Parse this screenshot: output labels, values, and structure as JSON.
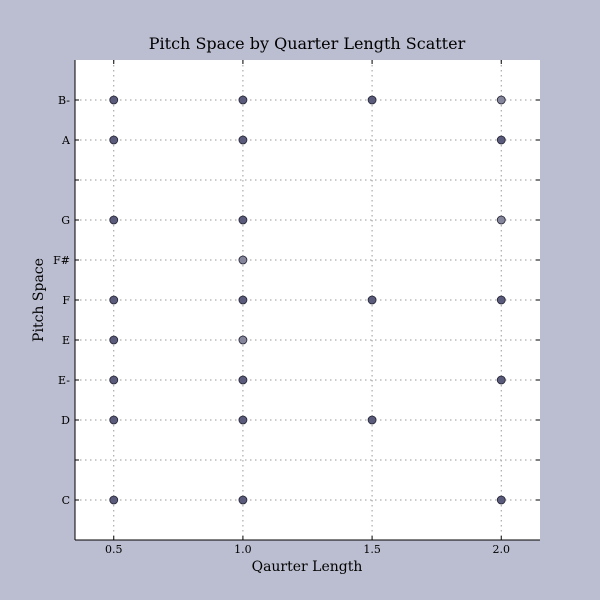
{
  "chart_data": {
    "type": "scatter",
    "title": "Pitch Space by Quarter Length Scatter",
    "xlabel": "Qaurter Length",
    "ylabel": "Pitch Space",
    "xlim": [
      0.35,
      2.15
    ],
    "ylim": [
      -1,
      11
    ],
    "xticks": [
      {
        "value": 0.5,
        "label": "0.5"
      },
      {
        "value": 1.0,
        "label": "1.0"
      },
      {
        "value": 1.5,
        "label": "1.5"
      },
      {
        "value": 2.0,
        "label": "2.0"
      }
    ],
    "yticks": [
      {
        "value": 0,
        "label": "C"
      },
      {
        "value": 1,
        "label": ""
      },
      {
        "value": 2,
        "label": "D"
      },
      {
        "value": 3,
        "label": "E-"
      },
      {
        "value": 4,
        "label": "E"
      },
      {
        "value": 5,
        "label": "F"
      },
      {
        "value": 6,
        "label": "F#"
      },
      {
        "value": 7,
        "label": "G"
      },
      {
        "value": 8,
        "label": ""
      },
      {
        "value": 9,
        "label": "A"
      },
      {
        "value": 10,
        "label": "B-"
      }
    ],
    "grid": true,
    "colors": {
      "dense": "#5a5a7a",
      "sparse": "#85859c",
      "edge": "#222233"
    },
    "points": [
      {
        "x": 0.5,
        "y": 10,
        "density": "dense"
      },
      {
        "x": 1.0,
        "y": 10,
        "density": "dense"
      },
      {
        "x": 1.5,
        "y": 10,
        "density": "dense"
      },
      {
        "x": 2.0,
        "y": 10,
        "density": "sparse"
      },
      {
        "x": 0.5,
        "y": 9,
        "density": "dense"
      },
      {
        "x": 1.0,
        "y": 9,
        "density": "dense"
      },
      {
        "x": 2.0,
        "y": 9,
        "density": "dense"
      },
      {
        "x": 0.5,
        "y": 7,
        "density": "dense"
      },
      {
        "x": 1.0,
        "y": 7,
        "density": "dense"
      },
      {
        "x": 2.0,
        "y": 7,
        "density": "sparse"
      },
      {
        "x": 1.0,
        "y": 6,
        "density": "sparse"
      },
      {
        "x": 0.5,
        "y": 5,
        "density": "dense"
      },
      {
        "x": 1.0,
        "y": 5,
        "density": "dense"
      },
      {
        "x": 1.5,
        "y": 5,
        "density": "dense"
      },
      {
        "x": 2.0,
        "y": 5,
        "density": "dense"
      },
      {
        "x": 0.5,
        "y": 4,
        "density": "dense"
      },
      {
        "x": 1.0,
        "y": 4,
        "density": "sparse"
      },
      {
        "x": 0.5,
        "y": 3,
        "density": "dense"
      },
      {
        "x": 1.0,
        "y": 3,
        "density": "dense"
      },
      {
        "x": 2.0,
        "y": 3,
        "density": "dense"
      },
      {
        "x": 0.5,
        "y": 2,
        "density": "dense"
      },
      {
        "x": 1.0,
        "y": 2,
        "density": "dense"
      },
      {
        "x": 1.5,
        "y": 2,
        "density": "dense"
      },
      {
        "x": 0.5,
        "y": 0,
        "density": "dense"
      },
      {
        "x": 1.0,
        "y": 0,
        "density": "dense"
      },
      {
        "x": 2.0,
        "y": 0,
        "density": "dense"
      }
    ]
  }
}
